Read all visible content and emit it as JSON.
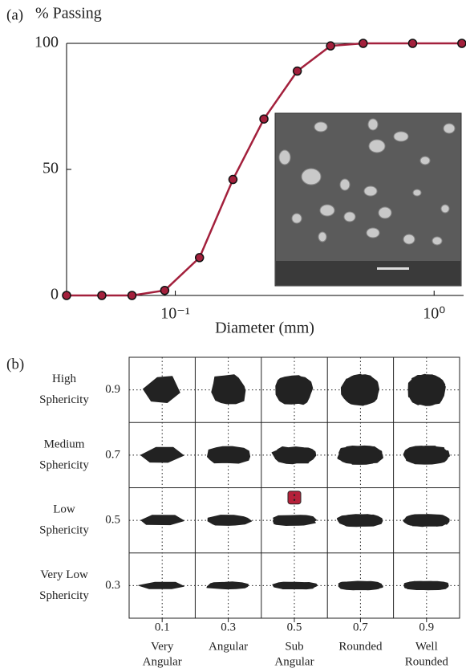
{
  "chart_data": [
    {
      "type": "line",
      "label": "(a)",
      "ylabel": "% Passing",
      "xlabel": "Diameter (mm)",
      "x": [
        0.038,
        0.052,
        0.068,
        0.091,
        0.124,
        0.167,
        0.22,
        0.296,
        0.398,
        0.532,
        0.826,
        1.28
      ],
      "series": [
        {
          "color": "#a3203c",
          "values": [
            0,
            0,
            0,
            2,
            15,
            46,
            70,
            89,
            99,
            100,
            100,
            100
          ]
        }
      ],
      "xlim": [
        0.038,
        1.3
      ],
      "xscale": "log",
      "xticks": [
        {
          "value": 0.1,
          "label": "10⁻¹"
        },
        {
          "value": 1,
          "label": "10⁰"
        }
      ],
      "ylim": [
        0,
        100
      ],
      "yticks": [
        0,
        50,
        100
      ]
    },
    {
      "type": "grid",
      "label": "(b)",
      "xlim": [
        0,
        1
      ],
      "ylim": [
        0.2,
        1.0
      ],
      "xticks": [
        0.1,
        0.3,
        0.5,
        0.7,
        0.9
      ],
      "categories": [
        [
          "Very",
          "Angular"
        ],
        [
          "Angular"
        ],
        [
          "Sub",
          "Angular"
        ],
        [
          "Rounded"
        ],
        [
          "Well",
          "Rounded"
        ]
      ],
      "yticks": [
        0.3,
        0.5,
        0.7,
        0.9
      ],
      "row_labels": [
        [
          "Very Low",
          "Sphericity"
        ],
        [
          "Low",
          "Sphericity"
        ],
        [
          "Medium",
          "Sphericity"
        ],
        [
          "High",
          "Sphericity"
        ]
      ],
      "points": [
        {
          "x": 0.5,
          "y": 0.57,
          "color": "#b5213a"
        }
      ]
    }
  ]
}
